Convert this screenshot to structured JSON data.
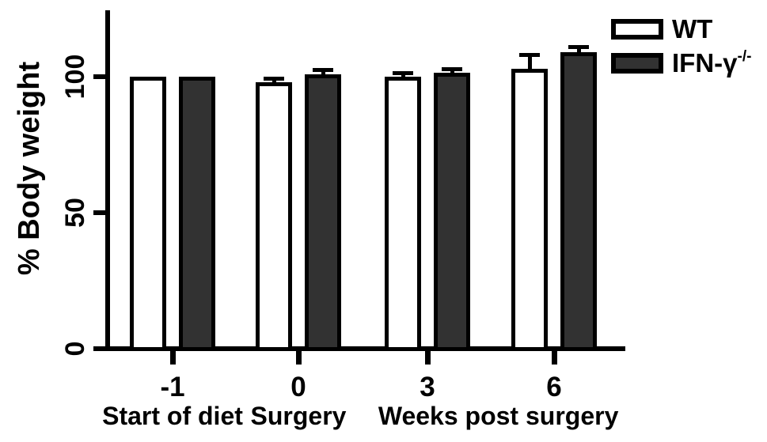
{
  "figure": {
    "background": "#ffffff",
    "axis_color": "#000000",
    "text_color": "#000000"
  },
  "chart_data": {
    "type": "bar",
    "title": "",
    "ylabel": "% Body weight",
    "xlabel": "",
    "ylim": [
      0,
      125
    ],
    "yticks": [
      0,
      50,
      100
    ],
    "grid": false,
    "legend_position": "top-right",
    "categories": [
      "-1",
      "0",
      "3",
      "6"
    ],
    "series": [
      {
        "name": "WT",
        "name_superscript": "",
        "fill": "#ffffff",
        "border": "#000000",
        "values": [
          100,
          98,
          100,
          103
        ],
        "errors_plus": [
          0,
          1.5,
          1.5,
          5
        ]
      },
      {
        "name": "IFN-γ",
        "name_superscript": "-/-",
        "fill": "#323232",
        "border": "#000000",
        "values": [
          100,
          101,
          101.5,
          109
        ],
        "errors_plus": [
          0,
          1.5,
          1.5,
          2
        ]
      }
    ],
    "category_captions": [
      {
        "text": "Start of diet",
        "anchor": 0
      },
      {
        "text": "Surgery",
        "anchor": 1
      },
      {
        "text": "Weeks post surgery",
        "anchor": 2.56
      }
    ]
  }
}
